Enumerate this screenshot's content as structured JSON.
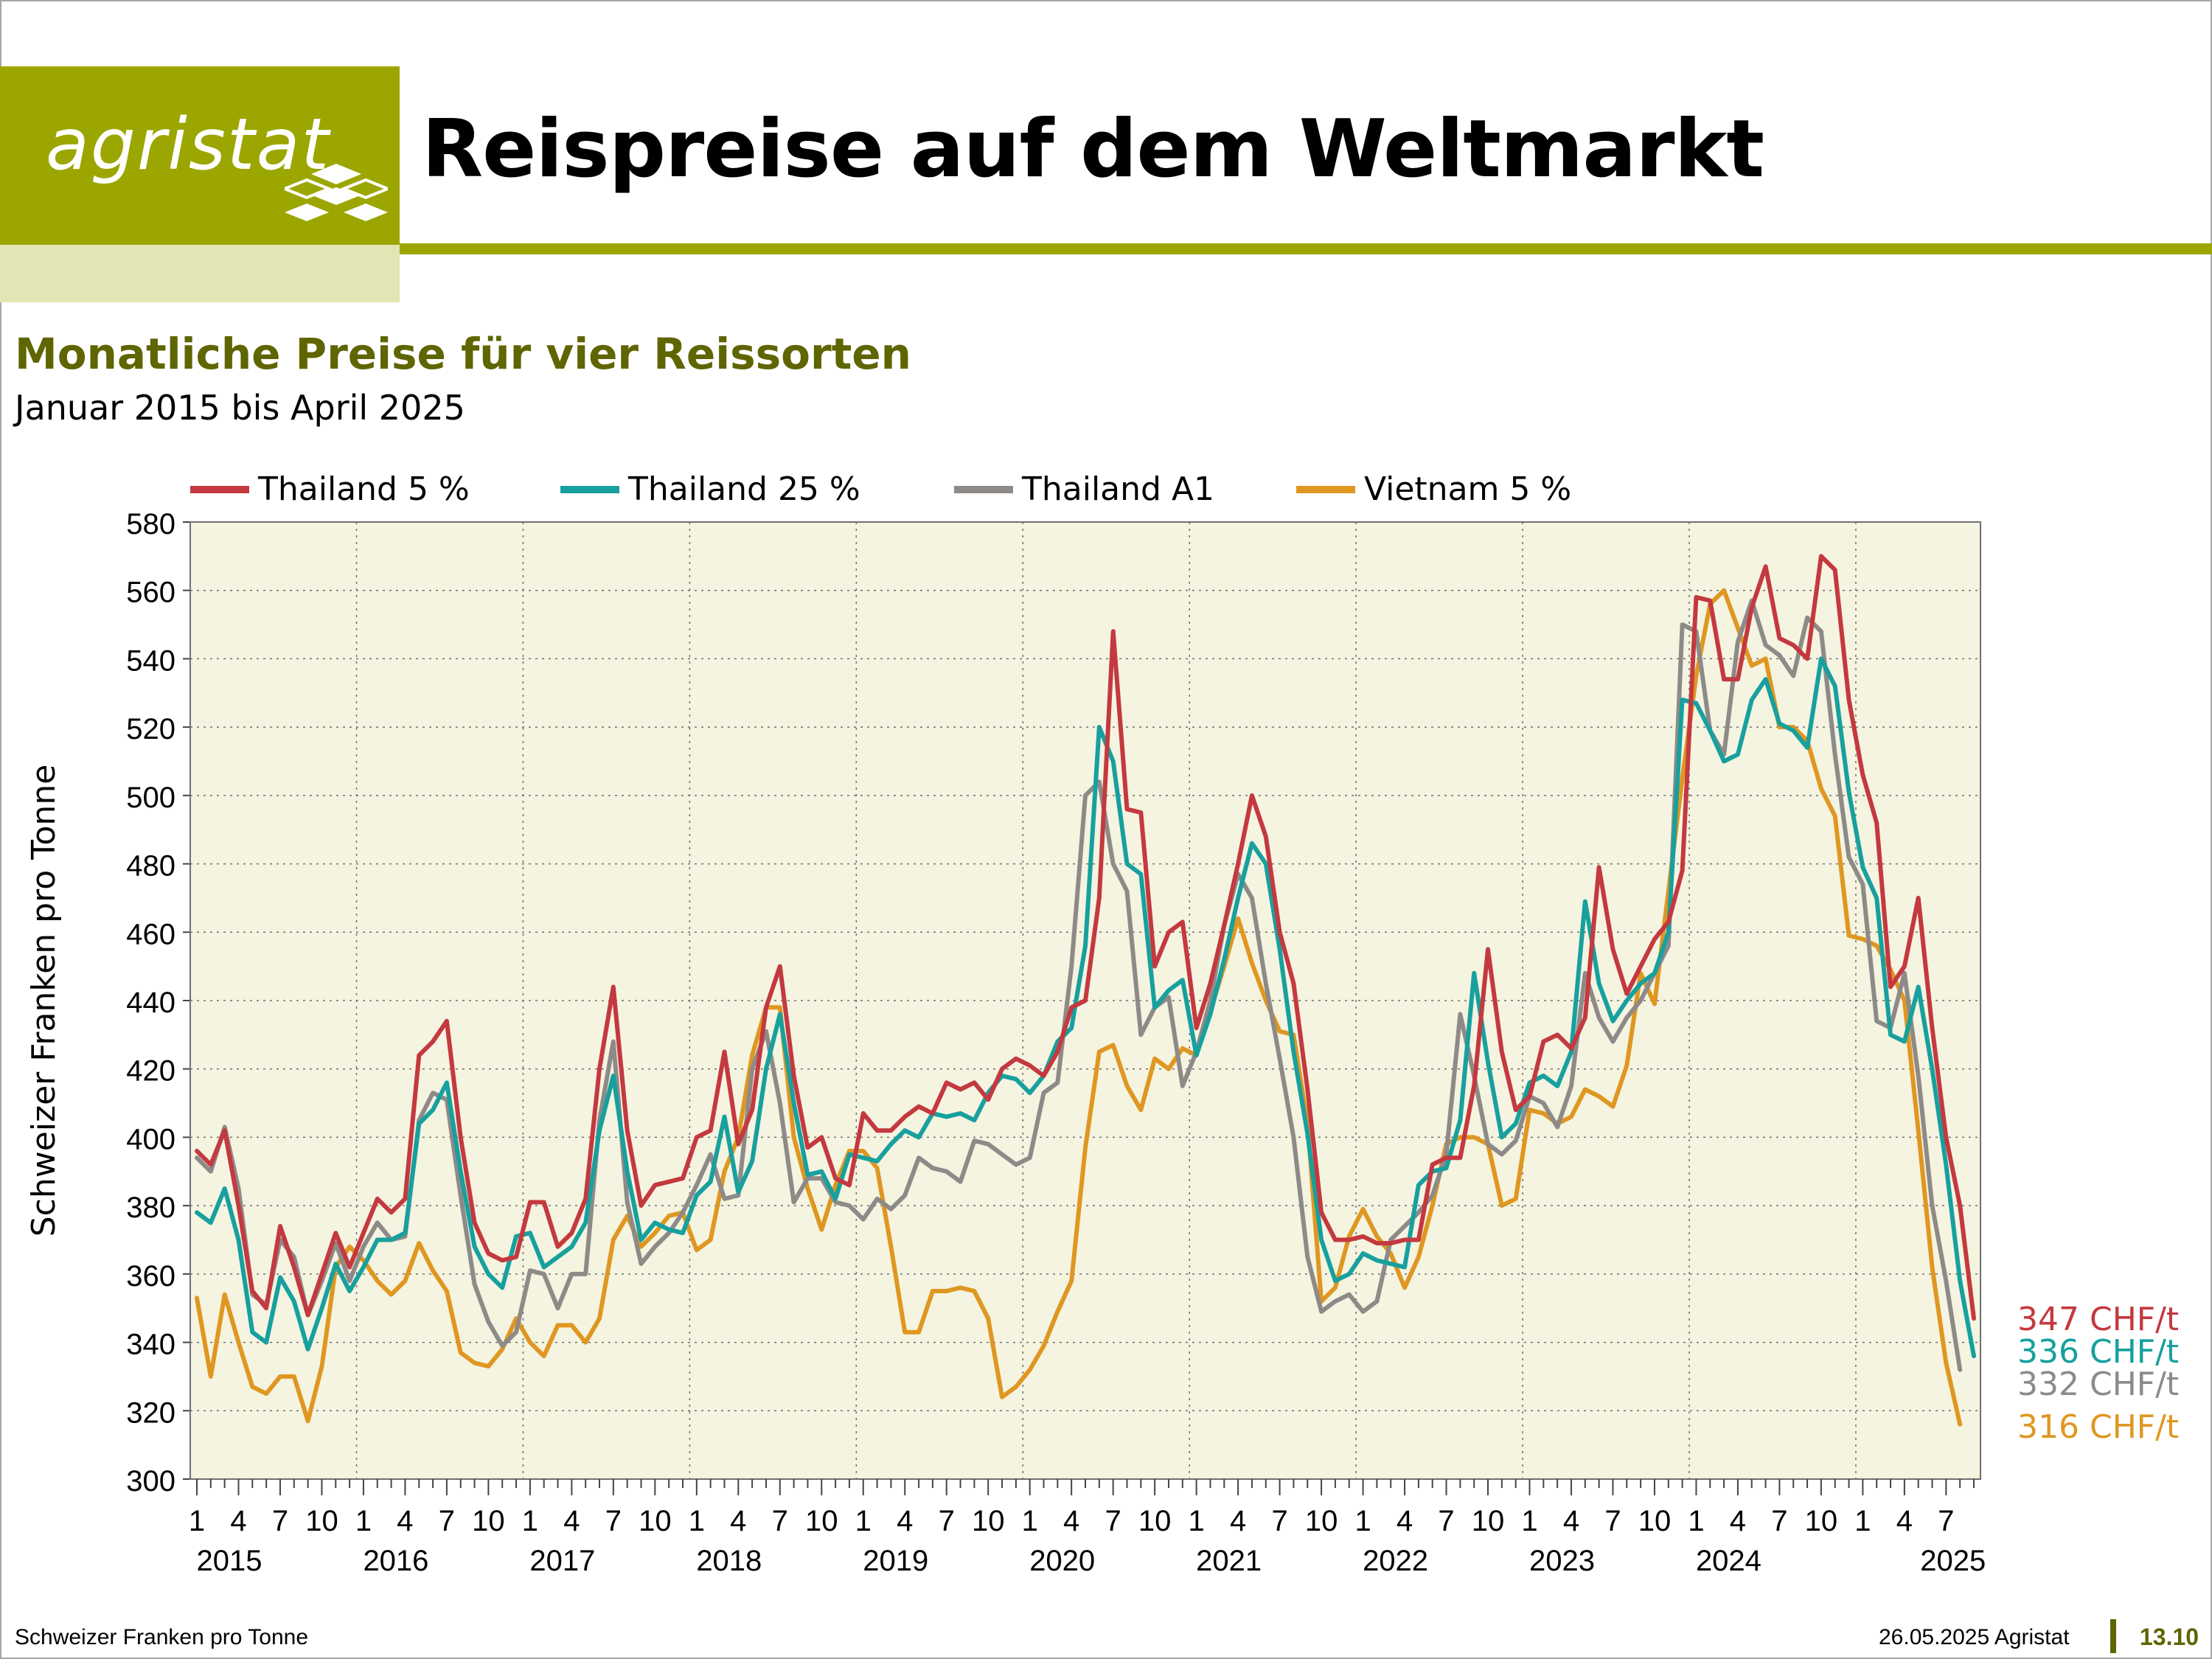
{
  "header": {
    "logo_text": "agristat",
    "title": "Reispreise auf dem Weltmarkt"
  },
  "subheader": {
    "title": "Monatliche Preise für vier Reissorten",
    "period": "Januar 2015 bis April 2025"
  },
  "footer": {
    "left": "Schweizer Franken pro Tonne",
    "right": "26.05.2025 Agristat",
    "page": "13.10"
  },
  "chart_data": {
    "type": "line",
    "ylabel": "Schweizer Franken pro Tonne",
    "ylim": [
      300,
      580
    ],
    "yticks": [
      300,
      320,
      340,
      360,
      380,
      400,
      420,
      440,
      460,
      480,
      500,
      520,
      540,
      560,
      580
    ],
    "x_start": "2015-01",
    "x_end": "2025-04",
    "month_tick_labels": [
      "1",
      "4",
      "7",
      "10"
    ],
    "year_labels": [
      "2015",
      "2016",
      "2017",
      "2018",
      "2019",
      "2020",
      "2021",
      "2022",
      "2023",
      "2024",
      "2025"
    ],
    "grid": true,
    "legend_position": "top",
    "series": [
      {
        "name": "Thailand 5 %",
        "color": "#c4393f",
        "end_label": "347 CHF/t",
        "values": [
          396,
          392,
          402,
          380,
          355,
          350,
          374,
          362,
          348,
          360,
          372,
          362,
          372,
          382,
          378,
          382,
          424,
          428,
          434,
          400,
          375,
          366,
          364,
          365,
          381,
          381,
          368,
          372,
          382,
          420,
          444,
          402,
          380,
          386,
          387,
          388,
          400,
          402,
          425,
          398,
          408,
          438,
          450,
          418,
          397,
          400,
          388,
          386,
          407,
          402,
          402,
          406,
          409,
          407,
          416,
          414,
          416,
          411,
          420,
          423,
          421,
          418,
          425,
          438,
          440,
          470,
          548,
          496,
          495,
          450,
          460,
          463,
          432,
          445,
          462,
          480,
          500,
          488,
          460,
          445,
          414,
          378,
          370,
          370,
          371,
          369,
          369,
          370,
          370,
          392,
          394,
          394,
          415,
          455,
          425,
          408,
          412,
          428,
          430,
          426,
          435,
          479,
          455,
          442,
          450,
          458,
          463,
          478,
          558,
          557,
          534,
          534,
          555,
          567,
          546,
          544,
          540,
          570,
          566,
          528,
          506,
          492,
          444,
          450,
          470,
          432,
          400,
          380,
          347
        ]
      },
      {
        "name": "Thailand 25 %",
        "color": "#17a09e",
        "end_label": "336 CHF/t",
        "values": [
          378,
          375,
          385,
          370,
          343,
          340,
          359,
          352,
          338,
          350,
          363,
          355,
          362,
          370,
          370,
          372,
          404,
          408,
          416,
          390,
          368,
          360,
          356,
          371,
          372,
          362,
          365,
          368,
          375,
          402,
          418,
          390,
          370,
          375,
          373,
          372,
          383,
          387,
          406,
          384,
          393,
          420,
          436,
          410,
          389,
          390,
          382,
          395,
          394,
          393,
          398,
          402,
          400,
          407,
          406,
          407,
          405,
          413,
          418,
          417,
          413,
          418,
          428,
          432,
          456,
          520,
          510,
          480,
          477,
          438,
          443,
          446,
          424,
          436,
          452,
          470,
          486,
          480,
          455,
          425,
          401,
          370,
          358,
          360,
          366,
          364,
          363,
          362,
          386,
          390,
          391,
          405,
          448,
          422,
          400,
          404,
          416,
          418,
          415,
          425,
          469,
          445,
          434,
          440,
          445,
          448,
          460,
          528,
          527,
          519,
          510,
          512,
          528,
          534,
          521,
          519,
          514,
          540,
          532,
          501,
          479,
          470,
          430,
          428,
          444,
          420,
          392,
          358,
          336
        ]
      },
      {
        "name": "Thailand A1",
        "color": "#8e8a88",
        "end_label": "332 CHF/t",
        "values": [
          394,
          390,
          403,
          385,
          354,
          351,
          370,
          365,
          348,
          358,
          369,
          358,
          368,
          375,
          370,
          371,
          405,
          413,
          411,
          383,
          357,
          346,
          339,
          343,
          361,
          360,
          350,
          360,
          360,
          405,
          428,
          381,
          363,
          368,
          372,
          378,
          386,
          395,
          382,
          383,
          420,
          431,
          410,
          381,
          388,
          388,
          381,
          380,
          376,
          382,
          379,
          383,
          394,
          391,
          390,
          387,
          399,
          398,
          395,
          392,
          394,
          413,
          416,
          450,
          500,
          504,
          480,
          472,
          430,
          438,
          441,
          415,
          425,
          440,
          462,
          477,
          470,
          445,
          423,
          400,
          365,
          349,
          352,
          354,
          349,
          352,
          370,
          374,
          378,
          383,
          395,
          436,
          418,
          398,
          395,
          399,
          412,
          410,
          403,
          415,
          448,
          435,
          428,
          435,
          440,
          448,
          456,
          550,
          548,
          519,
          512,
          545,
          557,
          544,
          541,
          535,
          552,
          548,
          512,
          482,
          474,
          434,
          432,
          448,
          418,
          380,
          358,
          332
        ]
      },
      {
        "name": "Vietnam 5 %",
        "color": "#df9721",
        "end_label": "316 CHF/t",
        "values": [
          353,
          330,
          354,
          340,
          327,
          325,
          330,
          330,
          317,
          333,
          362,
          368,
          364,
          358,
          354,
          358,
          369,
          361,
          355,
          337,
          334,
          333,
          338,
          347,
          340,
          336,
          345,
          345,
          340,
          347,
          370,
          377,
          368,
          372,
          377,
          378,
          367,
          370,
          390,
          400,
          424,
          438,
          438,
          400,
          385,
          373,
          386,
          396,
          396,
          391,
          368,
          343,
          343,
          355,
          355,
          356,
          355,
          347,
          324,
          327,
          332,
          339,
          349,
          358,
          397,
          425,
          427,
          415,
          408,
          423,
          420,
          426,
          424,
          437,
          450,
          464,
          451,
          440,
          431,
          430,
          404,
          352,
          356,
          371,
          379,
          371,
          366,
          356,
          365,
          380,
          398,
          400,
          400,
          398,
          380,
          382,
          408,
          407,
          404,
          406,
          414,
          412,
          409,
          421,
          448,
          439,
          472,
          505,
          535,
          556,
          560,
          549,
          538,
          540,
          520,
          520,
          516,
          502,
          494,
          459,
          458,
          456,
          449,
          440,
          402,
          362,
          334,
          316
        ]
      }
    ]
  }
}
